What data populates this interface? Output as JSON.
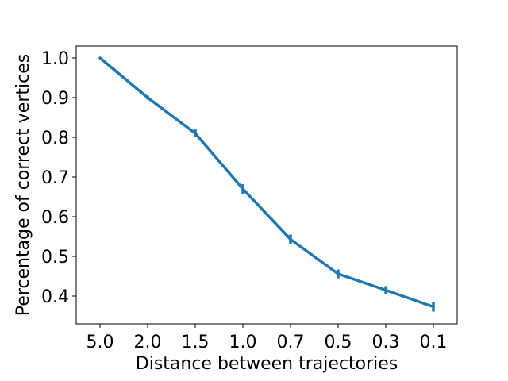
{
  "chart_data": {
    "type": "line",
    "categories": [
      "5.0",
      "2.0",
      "1.5",
      "1.0",
      "0.7",
      "0.5",
      "0.3",
      "0.1"
    ],
    "series": [
      {
        "values": [
          1.0,
          0.9,
          0.81,
          0.67,
          0.543,
          0.456,
          0.415,
          0.373
        ],
        "errors": [
          0.0,
          0.005,
          0.01,
          0.012,
          0.012,
          0.011,
          0.01,
          0.012
        ],
        "color": "#1f77b4"
      }
    ],
    "xlabel": "Distance between trajectories",
    "ylabel": "Percentage of correct vertices",
    "ylim": [
      0.33,
      1.03
    ],
    "yticks": [
      0.4,
      0.5,
      0.6,
      0.7,
      0.8,
      0.9,
      1.0
    ],
    "ytick_labels": [
      "0.4",
      "0.5",
      "0.6",
      "0.7",
      "0.8",
      "0.9",
      "1.0"
    ],
    "grid": false,
    "legend": false
  }
}
